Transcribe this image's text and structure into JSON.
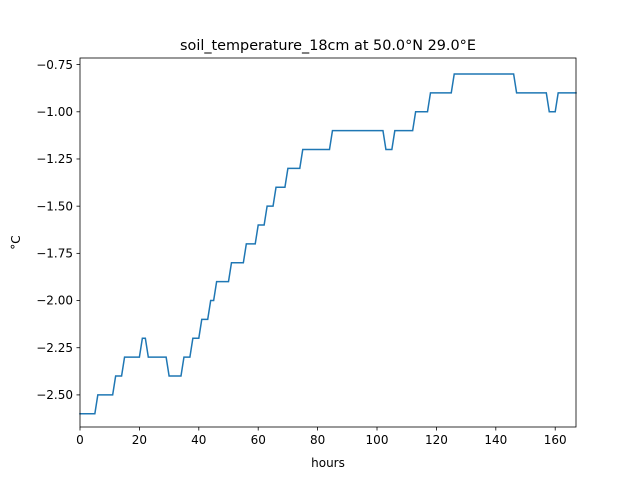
{
  "chart_data": {
    "type": "line",
    "title": "soil_temperature_18cm at 50.0°N 29.0°E",
    "xlabel": "hours",
    "ylabel": "°C",
    "xlim": [
      0,
      167
    ],
    "ylim": [
      -2.67,
      -0.715
    ],
    "x_ticks": [
      0,
      20,
      40,
      60,
      80,
      100,
      120,
      140,
      160
    ],
    "y_ticks": [
      -2.5,
      -2.25,
      -2.0,
      -1.75,
      -1.5,
      -1.25,
      -1.0,
      -0.75
    ],
    "x_tick_labels": [
      "0",
      "20",
      "40",
      "60",
      "80",
      "100",
      "120",
      "140",
      "160"
    ],
    "y_tick_labels": [
      "−2.50",
      "−2.25",
      "−2.00",
      "−1.75",
      "−1.50",
      "−1.25",
      "−1.00",
      "−0.75"
    ],
    "grid": false,
    "line_color": "#1f77b4",
    "series": [
      {
        "x": [
          0,
          5,
          6,
          11,
          12,
          14,
          15,
          20,
          21,
          22,
          23,
          29,
          30,
          34,
          35,
          37,
          38,
          40,
          41,
          43,
          44,
          45,
          46,
          50,
          51,
          55,
          56,
          59,
          60,
          62,
          63,
          65,
          66,
          69,
          70,
          74,
          75,
          84,
          85,
          102,
          103,
          105,
          106,
          112,
          113,
          117,
          118,
          125,
          126,
          146,
          147,
          157,
          158,
          160,
          161,
          167
        ],
        "y": [
          -2.6,
          -2.6,
          -2.5,
          -2.5,
          -2.4,
          -2.4,
          -2.3,
          -2.3,
          -2.2,
          -2.2,
          -2.3,
          -2.3,
          -2.4,
          -2.4,
          -2.3,
          -2.3,
          -2.2,
          -2.2,
          -2.1,
          -2.1,
          -2.0,
          -2.0,
          -1.9,
          -1.9,
          -1.8,
          -1.8,
          -1.7,
          -1.7,
          -1.6,
          -1.6,
          -1.5,
          -1.5,
          -1.4,
          -1.4,
          -1.3,
          -1.3,
          -1.2,
          -1.2,
          -1.1,
          -1.1,
          -1.2,
          -1.2,
          -1.1,
          -1.1,
          -1.0,
          -1.0,
          -0.9,
          -0.9,
          -0.8,
          -0.8,
          -0.9,
          -0.9,
          -1.0,
          -1.0,
          -0.9,
          -0.9
        ]
      }
    ]
  }
}
